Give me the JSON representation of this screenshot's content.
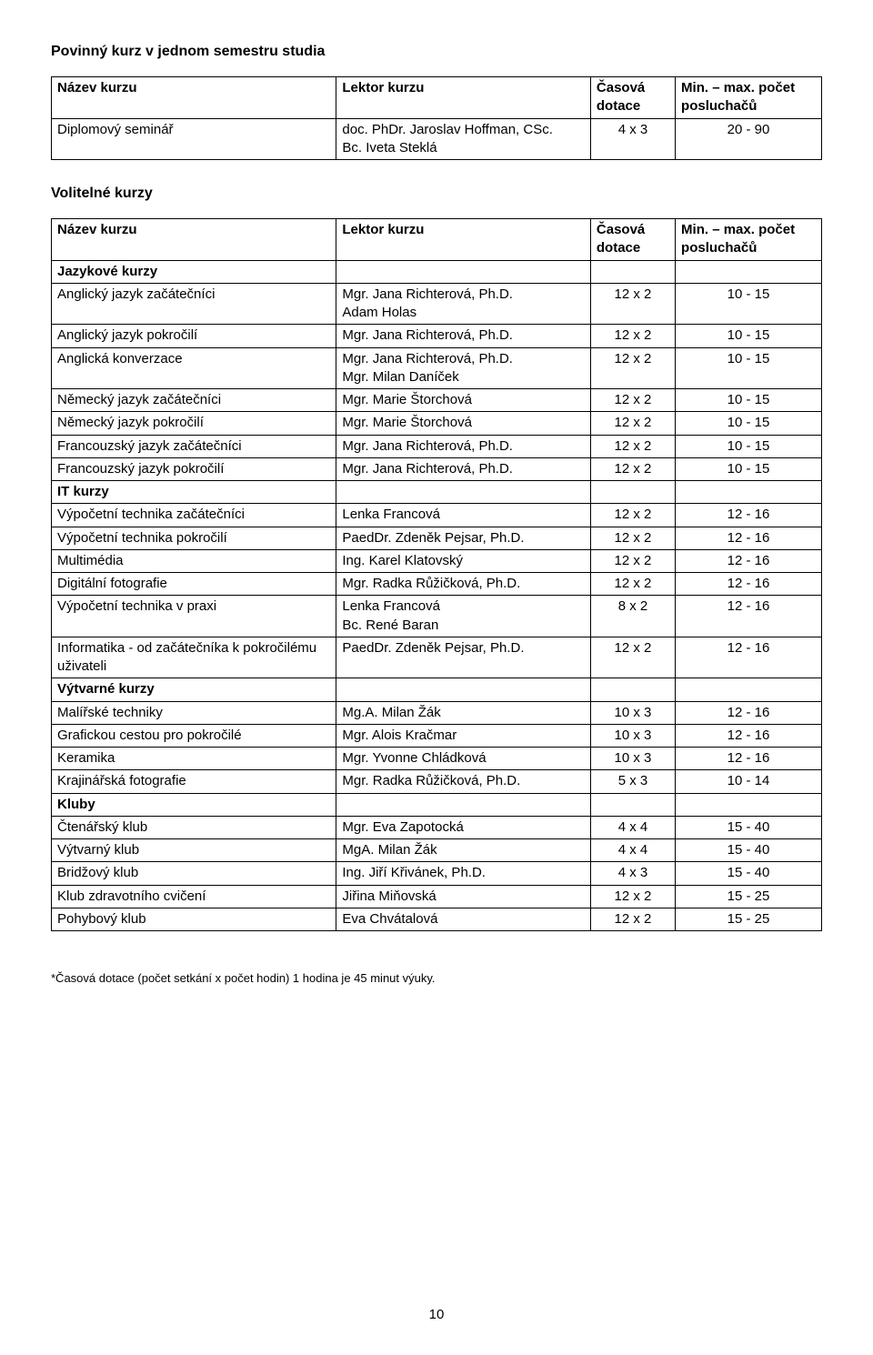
{
  "section1_title": "Povinný kurz v jednom semestru studia",
  "section2_title": "Volitelné kurzy",
  "header": {
    "name": "Název kurzu",
    "lect": "Lektor kurzu",
    "cas": "Časová dotace",
    "min": "Min. – max. počet posluchačů"
  },
  "mandatory": {
    "name": "Diplomový seminář",
    "lect": "doc. PhDr. Jaroslav Hoffman, CSc.\nBc. Iveta Steklá",
    "cas": "4 x 3",
    "min": "20 - 90"
  },
  "optional_sections": [
    {
      "title": "Jazykové kurzy",
      "rows": [
        {
          "name": "Anglický jazyk začátečníci",
          "lect": "Mgr. Jana Richterová, Ph.D.\nAdam Holas",
          "cas": "12 x 2",
          "min": "10 - 15"
        },
        {
          "name": "Anglický jazyk pokročilí",
          "lect": "Mgr. Jana Richterová, Ph.D.",
          "cas": "12 x 2",
          "min": "10 - 15"
        },
        {
          "name": "Anglická konverzace",
          "lect": "Mgr. Jana Richterová, Ph.D.\nMgr. Milan Daníček",
          "cas": "12 x 2",
          "min": "10 - 15"
        },
        {
          "name": "Německý jazyk začátečníci",
          "lect": "Mgr. Marie Štorchová",
          "cas": "12 x 2",
          "min": "10 - 15"
        },
        {
          "name": "Německý jazyk pokročilí",
          "lect": "Mgr. Marie Štorchová",
          "cas": "12 x 2",
          "min": "10 - 15"
        },
        {
          "name": "Francouzský jazyk začátečníci",
          "lect": "Mgr. Jana Richterová, Ph.D.",
          "cas": "12 x 2",
          "min": "10 - 15"
        },
        {
          "name": "Francouzský jazyk pokročilí",
          "lect": "Mgr. Jana Richterová, Ph.D.",
          "cas": "12 x 2",
          "min": "10 - 15"
        }
      ]
    },
    {
      "title": "IT kurzy",
      "rows": [
        {
          "name": "Výpočetní technika začátečníci",
          "lect": "Lenka Francová",
          "cas": "12 x 2",
          "min": "12 - 16"
        },
        {
          "name": "Výpočetní technika pokročilí",
          "lect": "PaedDr. Zdeněk Pejsar, Ph.D.",
          "cas": "12 x 2",
          "min": "12 - 16"
        },
        {
          "name": "Multimédia",
          "lect": "Ing. Karel Klatovský",
          "cas": "12 x 2",
          "min": "12 - 16"
        },
        {
          "name": "Digitální fotografie",
          "lect": "Mgr. Radka Růžičková, Ph.D.",
          "cas": "12 x 2",
          "min": "12 - 16"
        },
        {
          "name": "Výpočetní technika v praxi",
          "lect": "Lenka Francová\nBc. René Baran",
          "cas": "8 x 2",
          "min": "12 - 16"
        },
        {
          "name": "Informatika - od začátečníka k pokročilému uživateli",
          "lect": "PaedDr. Zdeněk Pejsar, Ph.D.",
          "cas": "12 x 2",
          "min": "12 - 16"
        }
      ]
    },
    {
      "title": "Výtvarné kurzy",
      "rows": [
        {
          "name": "Malířské techniky",
          "lect": "Mg.A. Milan Žák",
          "cas": "10 x 3",
          "min": "12 - 16"
        },
        {
          "name": "Grafickou cestou pro pokročilé",
          "lect": "Mgr. Alois Kračmar",
          "cas": "10 x 3",
          "min": "12 - 16"
        },
        {
          "name": "Keramika",
          "lect": "Mgr. Yvonne Chládková",
          "cas": "10 x 3",
          "min": "12 - 16"
        },
        {
          "name": "Krajinářská fotografie",
          "lect": "Mgr. Radka Růžičková, Ph.D.",
          "cas": "5 x 3",
          "min": "10 - 14"
        }
      ]
    },
    {
      "title": "Kluby",
      "rows": [
        {
          "name": "Čtenářský klub",
          "lect": "Mgr. Eva Zapotocká",
          "cas": "4 x 4",
          "min": "15 - 40"
        },
        {
          "name": "Výtvarný klub",
          "lect": "MgA. Milan Žák",
          "cas": "4 x 4",
          "min": "15 - 40"
        },
        {
          "name": "Bridžový klub",
          "lect": "Ing. Jiří Křivánek, Ph.D.",
          "cas": "4 x 3",
          "min": "15 - 40"
        },
        {
          "name": "Klub zdravotního cvičení",
          "lect": "Jiřina Miňovská",
          "cas": "12 x 2",
          "min": "15 - 25"
        },
        {
          "name": "Pohybový klub",
          "lect": "Eva Chvátalová",
          "cas": "12 x 2",
          "min": "15 - 25"
        }
      ]
    }
  ],
  "footnote": "*Časová dotace (počet setkání x počet hodin) 1 hodina je 45 minut výuky.",
  "page_number": "10"
}
